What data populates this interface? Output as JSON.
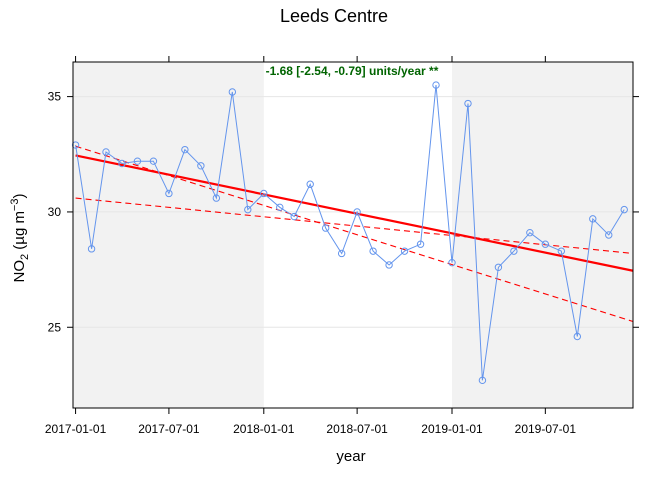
{
  "chart_data": {
    "type": "line",
    "title": "Leeds Centre",
    "xlabel": "year",
    "ylabel_main": "NO",
    "ylabel_sub": "2",
    "ylabel_units_open": " (µg m",
    "ylabel_units_sup": "−3",
    "ylabel_units_close": ")",
    "annotation": "-1.68 [-2.54, -0.79] units/year **",
    "annotation_color": "#006400",
    "xlim": [
      "2016-12-27",
      "2019-12-18"
    ],
    "ylim": [
      21.5,
      36.5
    ],
    "x_ticks": [
      "2017-01-01",
      "2017-07-01",
      "2018-01-01",
      "2018-07-01",
      "2019-01-01",
      "2019-07-01"
    ],
    "x_tick_labels": [
      "2017-01-01",
      "2017-07-01",
      "2018-01-01",
      "2018-07-01",
      "2019-01-01",
      "2019-07-01"
    ],
    "y_ticks": [
      25,
      30,
      35
    ],
    "y_tick_labels": [
      "25",
      "30",
      "35"
    ],
    "shaded_periods": [
      {
        "start": "2016-12-27",
        "end": "2018-01-01"
      },
      {
        "start": "2019-01-01",
        "end": "2019-12-18"
      }
    ],
    "shade_color": "#f2f2f2",
    "grid_color": "#e6e6e6",
    "series": [
      {
        "color": "#6495ED",
        "x": [
          "2017-01-01",
          "2017-02-01",
          "2017-03-01",
          "2017-04-01",
          "2017-05-01",
          "2017-06-01",
          "2017-07-01",
          "2017-08-01",
          "2017-09-01",
          "2017-10-01",
          "2017-11-01",
          "2017-12-01",
          "2018-01-01",
          "2018-02-01",
          "2018-03-01",
          "2018-04-01",
          "2018-05-01",
          "2018-06-01",
          "2018-07-01",
          "2018-08-01",
          "2018-09-01",
          "2018-10-01",
          "2018-11-01",
          "2018-12-01",
          "2019-01-01",
          "2019-02-01",
          "2019-03-01",
          "2019-04-01",
          "2019-05-01",
          "2019-06-01",
          "2019-07-01",
          "2019-08-01",
          "2019-09-01",
          "2019-10-01",
          "2019-11-01",
          "2019-12-01"
        ],
        "y": [
          32.9,
          28.4,
          32.6,
          32.1,
          32.2,
          32.2,
          30.8,
          32.7,
          32.0,
          30.6,
          35.2,
          30.1,
          30.8,
          30.2,
          29.8,
          31.2,
          29.3,
          28.2,
          30.0,
          28.3,
          27.7,
          28.3,
          28.6,
          35.5,
          27.8,
          34.7,
          22.7,
          27.6,
          28.3,
          29.1,
          28.6,
          28.3,
          24.6,
          29.7,
          29.0,
          30.1
        ]
      }
    ],
    "trend_line": {
      "color": "#ff0000",
      "x": [
        "2017-01-01",
        "2019-12-18"
      ],
      "y": [
        32.45,
        27.45
      ]
    },
    "ci_lines": [
      {
        "color": "#ff0000",
        "x": [
          "2017-01-01",
          "2019-12-18"
        ],
        "y": [
          32.85,
          25.25
        ]
      },
      {
        "color": "#ff0000",
        "x": [
          "2017-01-01",
          "2019-12-18"
        ],
        "y": [
          30.6,
          28.2
        ]
      }
    ]
  }
}
